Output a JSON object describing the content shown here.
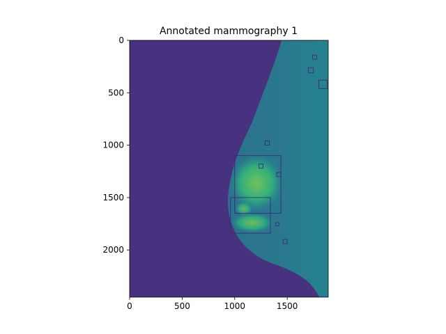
{
  "chart_data": {
    "type": "heatmap",
    "title": "Annotated mammography 1",
    "xlabel": "",
    "ylabel": "",
    "image_size": [
      1890,
      2450
    ],
    "xlim": [
      0,
      1890
    ],
    "ylim": [
      2450,
      0
    ],
    "xticks": [
      0,
      500,
      1000,
      1500
    ],
    "yticks": [
      0,
      500,
      1000,
      1500,
      2000
    ],
    "colormap": "viridis",
    "background_color": "#46327e",
    "tissue_color": "#31688e",
    "highlight_color": "#6ccd5a",
    "annotation_color": "#3b2d73",
    "annotation_boxes": [
      {
        "x0": 1000,
        "y0": 1100,
        "x1": 1440,
        "y1": 1650
      },
      {
        "x0": 960,
        "y0": 1500,
        "x1": 1340,
        "y1": 1840
      },
      {
        "x0": 1290,
        "y0": 960,
        "x1": 1330,
        "y1": 1000
      },
      {
        "x0": 1230,
        "y0": 1180,
        "x1": 1270,
        "y1": 1220
      },
      {
        "x0": 1400,
        "y0": 1260,
        "x1": 1440,
        "y1": 1300
      },
      {
        "x0": 1390,
        "y0": 1740,
        "x1": 1420,
        "y1": 1770
      },
      {
        "x0": 1460,
        "y0": 1900,
        "x1": 1500,
        "y1": 1940
      },
      {
        "x0": 1700,
        "y0": 260,
        "x1": 1750,
        "y1": 310
      },
      {
        "x0": 1800,
        "y0": 380,
        "x1": 1880,
        "y1": 460
      },
      {
        "x0": 1740,
        "y0": 140,
        "x1": 1780,
        "y1": 180
      }
    ]
  }
}
